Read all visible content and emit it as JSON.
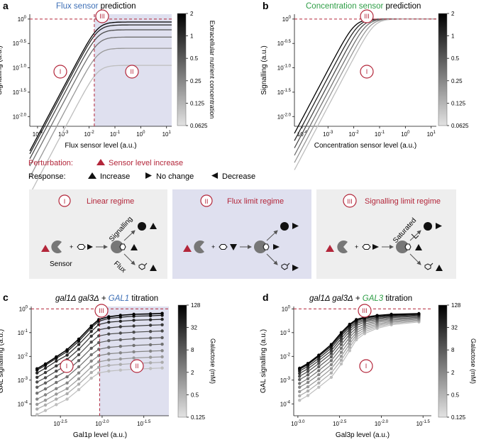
{
  "colors": {
    "red": "#b3263a",
    "blue": "#3d6fb6",
    "green": "#2e9e46",
    "shade": "#dfe0ef",
    "box_grey": "#eeeeee",
    "box_blue": "#dfe0ef"
  },
  "panels": {
    "a": {
      "letter": "a",
      "title_colored": "Flux sensor",
      "title_rest": " prediction"
    },
    "b": {
      "letter": "b",
      "title_colored": "Concentration sensor",
      "title_rest": " prediction"
    },
    "c": {
      "letter": "c",
      "title_italic": "gal1Δ gal3Δ",
      "title_plus": " + ",
      "title_gene": "GAL1",
      "title_rest": " titration"
    },
    "d": {
      "letter": "d",
      "title_italic": "gal1Δ gal3Δ",
      "title_plus": " + ",
      "title_gene": "GAL3",
      "title_rest": " titration"
    }
  },
  "legend": {
    "perturbation_label": "Perturbation:",
    "perturbation_value": "Sensor level increase",
    "response_label": "Response:",
    "increase": "Increase",
    "no_change": "No change",
    "decrease": "Decrease"
  },
  "regimes": [
    {
      "numeral": "I",
      "title": "Linear regime",
      "arrow_top": "Signalling",
      "arrow_bottom": "Flux",
      "sensor_label": "Sensor"
    },
    {
      "numeral": "II",
      "title": "Flux limit regime"
    },
    {
      "numeral": "III",
      "title": "Signalling limit regime",
      "arrow_top": "Saturated"
    }
  ],
  "chart_data": [
    {
      "id": "a",
      "type": "line",
      "title": "Flux sensor prediction",
      "xlabel": "Flux sensor level (a.u.)",
      "ylabel": "Signalling (a.u.)",
      "x_log_range": [
        -4.3,
        1.2
      ],
      "y_log_range": [
        -2.2,
        0.1
      ],
      "x_tick_labels": [
        "10^-4",
        "10^-3",
        "10^-2",
        "10^-1",
        "10^0",
        "10^1"
      ],
      "y_tick_labels": [
        "10^0",
        "10^-0.5",
        "10^-1.0",
        "10^-1.5",
        "10^-2.0"
      ],
      "colorbar": {
        "label": "Extracellular nutrient concentration",
        "ticks": [
          "2",
          "1",
          "0.5",
          "0.25",
          "0.125",
          "0.0625"
        ]
      },
      "concentrations": [
        2,
        1,
        0.5,
        0.25,
        0.125,
        0.0625
      ],
      "plateaus_log10": [
        -0.06,
        -0.12,
        -0.22,
        -0.37,
        -0.6,
        -0.95
      ],
      "annotations": [
        "I",
        "II",
        "III"
      ],
      "dashed_x_log": -1.8,
      "dashed_y_log": 0
    },
    {
      "id": "b",
      "type": "line",
      "title": "Concentration sensor prediction",
      "xlabel": "Concentration sensor level (a.u.)",
      "ylabel": "Signalling (a.u.)",
      "x_log_range": [
        -4.3,
        1.2
      ],
      "y_log_range": [
        -2.2,
        0.1
      ],
      "x_tick_labels": [
        "10^-4",
        "10^-3",
        "10^-2",
        "10^-1",
        "10^0",
        "10^1"
      ],
      "y_tick_labels": [
        "10^0",
        "10^-0.5",
        "10^-1.0",
        "10^-1.5",
        "10^-2.0"
      ],
      "colorbar": {
        "label": "",
        "ticks": [
          "2",
          "1",
          "0.5",
          "0.25",
          "0.125",
          "0.0625"
        ]
      },
      "concentrations": [
        2,
        1,
        0.5,
        0.25,
        0.125,
        0.0625
      ],
      "shift_log10": [
        0,
        0.15,
        0.3,
        0.45,
        0.6,
        0.75
      ],
      "annotations": [
        "I",
        "III"
      ],
      "dashed_y_log": 0
    },
    {
      "id": "c",
      "type": "line",
      "title": "gal1Δ gal3Δ + GAL1 titration",
      "xlabel": "Gal1p level (a.u.)",
      "ylabel": "GAL signalling (a.u.)",
      "x_log_range": [
        -2.85,
        -1.2
      ],
      "y_log_range": [
        -4.5,
        0.1
      ],
      "x_log": [
        -2.78,
        -2.68,
        -2.55,
        -2.42,
        -2.28,
        -2.13,
        -2.04,
        -1.92,
        -1.78,
        -1.62,
        -1.42,
        -1.28
      ],
      "x_tick_labels": [
        "10^-2.5",
        "10^-2.0",
        "10^-1.5"
      ],
      "y_tick_labels": [
        "10^0",
        "10^-1",
        "10^-2",
        "10^-3",
        "10^-4"
      ],
      "colorbar": {
        "label": "Galactose (mM)",
        "ticks": [
          "128",
          "32",
          "8",
          "2",
          "0.5",
          "0.125"
        ]
      },
      "galactose_mM": [
        128,
        64,
        32,
        16,
        8,
        4,
        2,
        1,
        0.5,
        0.25,
        0.125
      ],
      "y_log_series": [
        [
          -2.52,
          -2.32,
          -2.02,
          -1.72,
          -1.27,
          -0.72,
          -0.45,
          -0.33,
          -0.27,
          -0.23,
          -0.21,
          -0.19
        ],
        [
          -2.58,
          -2.38,
          -2.08,
          -1.8,
          -1.36,
          -0.8,
          -0.52,
          -0.4,
          -0.35,
          -0.31,
          -0.29,
          -0.27
        ],
        [
          -2.7,
          -2.5,
          -2.2,
          -1.95,
          -1.5,
          -0.95,
          -0.66,
          -0.56,
          -0.52,
          -0.48,
          -0.46,
          -0.44
        ],
        [
          -2.88,
          -2.68,
          -2.4,
          -2.13,
          -1.7,
          -1.15,
          -0.88,
          -0.8,
          -0.75,
          -0.72,
          -0.69,
          -0.67
        ],
        [
          -3.08,
          -2.9,
          -2.62,
          -2.36,
          -1.93,
          -1.4,
          -1.14,
          -1.06,
          -1.02,
          -0.98,
          -0.95,
          -0.93
        ],
        [
          -3.3,
          -3.12,
          -2.85,
          -2.6,
          -2.18,
          -1.66,
          -1.42,
          -1.34,
          -1.3,
          -1.26,
          -1.23,
          -1.21
        ],
        [
          -3.55,
          -3.37,
          -3.1,
          -2.86,
          -2.44,
          -1.93,
          -1.7,
          -1.62,
          -1.58,
          -1.54,
          -1.51,
          -1.49
        ],
        [
          -3.8,
          -3.62,
          -3.36,
          -3.12,
          -2.7,
          -2.2,
          -1.97,
          -1.89,
          -1.85,
          -1.81,
          -1.78,
          -1.76
        ],
        [
          -4.02,
          -3.85,
          -3.59,
          -3.36,
          -2.95,
          -2.45,
          -2.23,
          -2.15,
          -2.11,
          -2.07,
          -2.04,
          -2.02
        ],
        [
          -4.22,
          -4.05,
          -3.8,
          -3.57,
          -3.17,
          -2.68,
          -2.46,
          -2.38,
          -2.34,
          -2.3,
          -2.27,
          -2.25
        ],
        [
          -4.45,
          -4.28,
          -4.03,
          -3.8,
          -3.4,
          -2.92,
          -2.7,
          -2.62,
          -2.58,
          -2.54,
          -2.51,
          -2.49
        ]
      ],
      "annotations": [
        "I",
        "II",
        "III"
      ],
      "dashed_x_log": -2.03,
      "dashed_y_log": 0
    },
    {
      "id": "d",
      "type": "line",
      "title": "gal1Δ gal3Δ + GAL3 titration",
      "xlabel": "Gal3p level (a.u.)",
      "ylabel": "GAL signalling (a.u.)",
      "x_log_range": [
        -3.05,
        -1.4
      ],
      "y_log_range": [
        -4.5,
        0.1
      ],
      "x_log": [
        -2.98,
        -2.88,
        -2.75,
        -2.6,
        -2.48,
        -2.38,
        -2.3,
        -2.2,
        -2.05,
        -1.88,
        -1.55
      ],
      "x_tick_labels": [
        "10^-3.0",
        "10^-2.5",
        "10^-2.0",
        "10^-1.5"
      ],
      "y_tick_labels": [
        "10^0",
        "10^-1",
        "10^-2",
        "10^-3",
        "10^-4"
      ],
      "colorbar": {
        "label": "Galactose (mM)",
        "ticks": [
          "128",
          "32",
          "8",
          "2",
          "0.5",
          "0.125"
        ]
      },
      "galactose_mM": [
        128,
        64,
        32,
        16,
        8,
        4,
        2,
        1,
        0.5,
        0.25,
        0.125
      ],
      "y_log_series": [
        [
          -2.5,
          -2.3,
          -1.95,
          -1.5,
          -1.0,
          -0.65,
          -0.45,
          -0.35,
          -0.28,
          -0.23,
          -0.2
        ],
        [
          -2.55,
          -2.35,
          -2.0,
          -1.57,
          -1.07,
          -0.7,
          -0.5,
          -0.39,
          -0.31,
          -0.26,
          -0.22
        ],
        [
          -2.62,
          -2.42,
          -2.08,
          -1.65,
          -1.14,
          -0.77,
          -0.56,
          -0.44,
          -0.35,
          -0.29,
          -0.25
        ],
        [
          -2.72,
          -2.52,
          -2.18,
          -1.76,
          -1.24,
          -0.85,
          -0.62,
          -0.5,
          -0.4,
          -0.33,
          -0.28
        ],
        [
          -2.84,
          -2.64,
          -2.3,
          -1.88,
          -1.36,
          -0.95,
          -0.7,
          -0.56,
          -0.45,
          -0.37,
          -0.31
        ],
        [
          -2.98,
          -2.78,
          -2.44,
          -2.02,
          -1.5,
          -1.07,
          -0.8,
          -0.64,
          -0.51,
          -0.42,
          -0.35
        ],
        [
          -3.14,
          -2.94,
          -2.6,
          -2.18,
          -1.66,
          -1.2,
          -0.9,
          -0.72,
          -0.57,
          -0.47,
          -0.39
        ],
        [
          -3.3,
          -3.1,
          -2.77,
          -2.35,
          -1.83,
          -1.34,
          -1.0,
          -0.8,
          -0.64,
          -0.52,
          -0.43
        ],
        [
          -3.48,
          -3.28,
          -2.95,
          -2.52,
          -2.0,
          -1.48,
          -1.1,
          -0.88,
          -0.7,
          -0.57,
          -0.47
        ],
        [
          -3.66,
          -3.46,
          -3.12,
          -2.7,
          -2.16,
          -1.62,
          -1.2,
          -0.96,
          -0.76,
          -0.62,
          -0.51
        ],
        [
          -3.85,
          -3.65,
          -3.3,
          -2.88,
          -2.32,
          -1.76,
          -1.3,
          -1.04,
          -0.82,
          -0.67,
          -0.55
        ]
      ],
      "annotations": [
        "I",
        "III"
      ],
      "dashed_y_log": 0
    }
  ]
}
